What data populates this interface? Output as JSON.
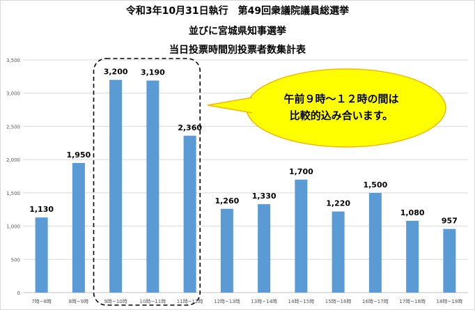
{
  "chart_data": {
    "type": "bar",
    "title_lines": [
      "令和3年10月31日執行　第49回衆議院議員総選挙",
      "並びに宮城県知事選挙",
      "当日投票時間別投票者数集計表"
    ],
    "categories": [
      "7時~8時",
      "8時~9時",
      "9時~10時",
      "10時~11時",
      "11時~12時",
      "12時~13時",
      "13時~14時",
      "14時~15時",
      "15時~16時",
      "16時~17時",
      "17時~18時",
      "18時~19時"
    ],
    "values": [
      1130,
      1950,
      3200,
      3190,
      2360,
      1260,
      1330,
      1700,
      1220,
      1500,
      1080,
      957
    ],
    "data_labels": [
      "1,130",
      "1,950",
      "3,200",
      "3,190",
      "2,360",
      "1,260",
      "1,330",
      "1,700",
      "1,220",
      "1,500",
      "1,080",
      "957"
    ],
    "ylim": [
      0,
      3500
    ],
    "y_ticks": [
      0,
      500,
      1000,
      1500,
      2000,
      2500,
      3000,
      3500
    ],
    "y_tick_labels": [
      "0",
      "500",
      "1,000",
      "1,500",
      "2,000",
      "2,500",
      "3,000",
      "3,500"
    ],
    "grid": true,
    "bar_color": "#5b9bd5",
    "highlight_range": [
      "9時~10時",
      "11時~12時"
    ],
    "callout_lines": [
      "午前９時～１２時の間は",
      "比較的込み合います。"
    ],
    "callout_fill": "#ffff00",
    "callout_border": "#f2b800"
  }
}
